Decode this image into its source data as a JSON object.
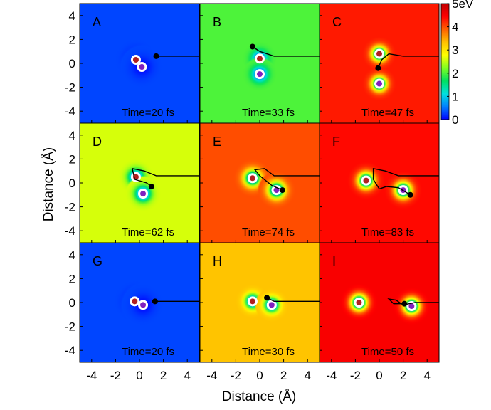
{
  "chart_data": {
    "type": "heatmap",
    "xlabel": "Distance (Å)",
    "ylabel": "Distance (Å)",
    "xlim": [
      -5,
      5
    ],
    "ylim": [
      -5,
      5
    ],
    "xticks": [
      "-4",
      "-2",
      "0",
      "2",
      "4"
    ],
    "yticks": [
      "4",
      "2",
      "0",
      "-2",
      "-4"
    ],
    "grid": false,
    "colorbar": {
      "range_ev": [
        0,
        5
      ],
      "tick_labels": [
        "5eV",
        "4",
        "3",
        "2",
        "1",
        "0"
      ],
      "colors": [
        "#0000ff",
        "#0080ff",
        "#00e0e0",
        "#00e060",
        "#80ff20",
        "#ffff00",
        "#ffc000",
        "#ff6000",
        "#ff0000",
        "#c00000"
      ]
    },
    "panels": [
      {
        "label": "A",
        "time": "Time=20 fs",
        "bg_ev": 0.3,
        "nuclei": [
          {
            "x": -0.3,
            "y": 0.3,
            "color": "#b02020"
          },
          {
            "x": 0.2,
            "y": -0.3,
            "color": "#8020c0"
          }
        ],
        "electron": {
          "x": 1.4,
          "y": 0.6
        },
        "path": [
          [
            1.4,
            0.6
          ],
          [
            5,
            0.6
          ]
        ],
        "well_depth": 4.2,
        "well_sigma": 1.2
      },
      {
        "label": "B",
        "time": "Time=33 fs",
        "bg_ev": 2.0,
        "nuclei": [
          {
            "x": 0.0,
            "y": 0.4,
            "color": "#b02020"
          },
          {
            "x": 0.0,
            "y": -0.9,
            "color": "#8020c0"
          }
        ],
        "electron": {
          "x": -0.6,
          "y": 1.4
        },
        "path": [
          [
            -0.6,
            1.4
          ],
          [
            0,
            1.0
          ],
          [
            1.2,
            0.6
          ],
          [
            5,
            0.6
          ]
        ],
        "well_depth": 2.0,
        "well_sigma": 0.9
      },
      {
        "label": "C",
        "time": "Time=47 fs",
        "bg_ev": 4.3,
        "nuclei": [
          {
            "x": 0.0,
            "y": 0.8,
            "color": "#b02020"
          },
          {
            "x": 0.0,
            "y": -1.7,
            "color": "#8020c0"
          }
        ],
        "electron": {
          "x": -0.1,
          "y": -0.4
        },
        "path": [
          [
            -0.1,
            -0.4
          ],
          [
            0.2,
            0.3
          ],
          [
            0.8,
            0.8
          ],
          [
            2,
            0.6
          ],
          [
            5,
            0.6
          ]
        ],
        "well_depth": 4.3,
        "well_sigma": 0.9
      },
      {
        "label": "D",
        "time": "Time=62 fs",
        "bg_ev": 2.6,
        "nuclei": [
          {
            "x": -0.3,
            "y": 0.5,
            "color": "#b02020"
          },
          {
            "x": 0.3,
            "y": -0.9,
            "color": "#8020c0"
          }
        ],
        "electron": {
          "x": 1.0,
          "y": -0.3
        },
        "path": [
          [
            1.0,
            -0.3
          ],
          [
            0.6,
            0
          ],
          [
            -0.4,
            0.3
          ],
          [
            -0.6,
            1.2
          ],
          [
            0.4,
            1.0
          ],
          [
            1.4,
            0.6
          ],
          [
            5,
            0.6
          ]
        ],
        "well_depth": 2.6,
        "well_sigma": 0.95
      },
      {
        "label": "E",
        "time": "Time=74 fs",
        "bg_ev": 4.0,
        "nuclei": [
          {
            "x": -0.6,
            "y": 0.4,
            "color": "#b02020"
          },
          {
            "x": 1.4,
            "y": -0.6,
            "color": "#8020c0"
          }
        ],
        "electron": {
          "x": 1.9,
          "y": -0.6
        },
        "path": [
          [
            1.9,
            -0.6
          ],
          [
            1.0,
            -0.2
          ],
          [
            0,
            0.6
          ],
          [
            -0.4,
            1.1
          ],
          [
            0.4,
            1.2
          ],
          [
            1.2,
            0.6
          ],
          [
            2.4,
            0.6
          ],
          [
            5,
            0.6
          ]
        ],
        "well_depth": 4.0,
        "well_sigma": 1.0
      },
      {
        "label": "F",
        "time": "Time=83 fs",
        "bg_ev": 4.4,
        "nuclei": [
          {
            "x": -1.1,
            "y": 0.2,
            "color": "#b02020"
          },
          {
            "x": 2.0,
            "y": -0.6,
            "color": "#8020c0"
          }
        ],
        "electron": {
          "x": 2.6,
          "y": -1.0
        },
        "path": [
          [
            2.6,
            -1.0
          ],
          [
            1.6,
            -0.4
          ],
          [
            0.6,
            -0.3
          ],
          [
            0.0,
            -0.5
          ],
          [
            -0.5,
            0.3
          ],
          [
            -0.5,
            1.2
          ],
          [
            0.5,
            1.0
          ],
          [
            1.6,
            0.6
          ],
          [
            5,
            0.6
          ]
        ],
        "well_depth": 4.4,
        "well_sigma": 1.0
      },
      {
        "label": "G",
        "time": "Time=20 fs",
        "bg_ev": 0.3,
        "nuclei": [
          {
            "x": -0.4,
            "y": 0.1,
            "color": "#b02020"
          },
          {
            "x": 0.3,
            "y": -0.2,
            "color": "#8020c0"
          }
        ],
        "electron": {
          "x": 1.3,
          "y": 0.1
        },
        "path": [
          [
            1.3,
            0.1
          ],
          [
            5,
            0.1
          ]
        ],
        "well_depth": 4.2,
        "well_sigma": 1.2
      },
      {
        "label": "H",
        "time": "Time=30 fs",
        "bg_ev": 3.3,
        "nuclei": [
          {
            "x": -0.6,
            "y": 0.1,
            "color": "#b02020"
          },
          {
            "x": 1.0,
            "y": -0.2,
            "color": "#8020c0"
          }
        ],
        "electron": {
          "x": 0.6,
          "y": 0.4
        },
        "path": [
          [
            0.6,
            0.4
          ],
          [
            1.2,
            0.1
          ],
          [
            5,
            0.1
          ]
        ],
        "well_depth": 3.3,
        "well_sigma": 0.9
      },
      {
        "label": "I",
        "time": "Time=50 fs",
        "bg_ev": 4.5,
        "nuclei": [
          {
            "x": -1.7,
            "y": 0.0,
            "color": "#b02020"
          },
          {
            "x": 2.7,
            "y": -0.3,
            "color": "#8020c0"
          }
        ],
        "electron": {
          "x": 2.1,
          "y": -0.1
        },
        "path": [
          [
            2.1,
            -0.1
          ],
          [
            1.2,
            -0.1
          ],
          [
            0.8,
            0.3
          ],
          [
            1.4,
            0.2
          ],
          [
            2.0,
            -0.2
          ],
          [
            3.0,
            0.0
          ],
          [
            5,
            0.0
          ]
        ],
        "well_depth": 4.5,
        "well_sigma": 1.0
      }
    ]
  }
}
